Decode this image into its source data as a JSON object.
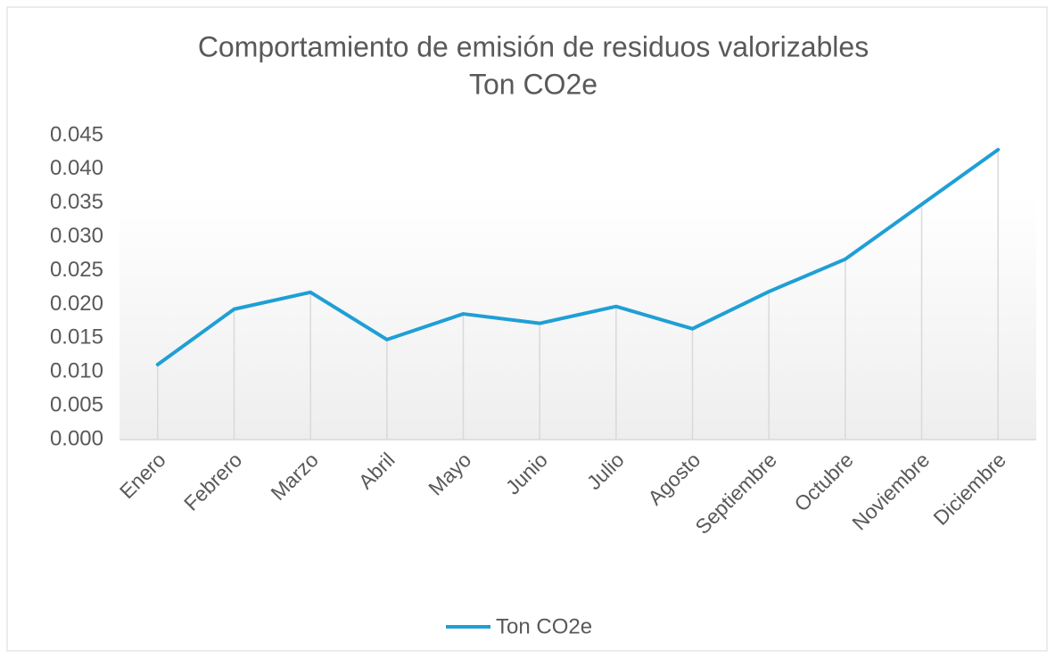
{
  "chart_data": {
    "type": "line",
    "title": "Comportamiento de emisión de residuos valorizables",
    "subtitle": "Ton CO2e",
    "categories": [
      "Enero",
      "Febrero",
      "Marzo",
      "Abril",
      "Mayo",
      "Junio",
      "Julio",
      "Agosto",
      "Septiembre",
      "Octubre",
      "Noviembre",
      "Diciembre"
    ],
    "series": [
      {
        "name": "Ton CO2e",
        "color": "#1f9fd5",
        "values": [
          0.0111,
          0.0193,
          0.0218,
          0.0148,
          0.0186,
          0.0172,
          0.0197,
          0.0164,
          0.0219,
          0.0267,
          0.0348,
          0.0429
        ]
      }
    ],
    "ylim": [
      0,
      0.045
    ],
    "yticks": [
      {
        "value": 0,
        "label": "0.000"
      },
      {
        "value": 0.005,
        "label": "0.005"
      },
      {
        "value": 0.01,
        "label": "0.010"
      },
      {
        "value": 0.015,
        "label": "0.015"
      },
      {
        "value": 0.02,
        "label": "0.020"
      },
      {
        "value": 0.025,
        "label": "0.025"
      },
      {
        "value": 0.03,
        "label": "0.030"
      },
      {
        "value": 0.035,
        "label": "0.035"
      },
      {
        "value": 0.04,
        "label": "0.040"
      },
      {
        "value": 0.045,
        "label": "0.045"
      }
    ],
    "drop_lines": true,
    "legend": "bottom"
  }
}
